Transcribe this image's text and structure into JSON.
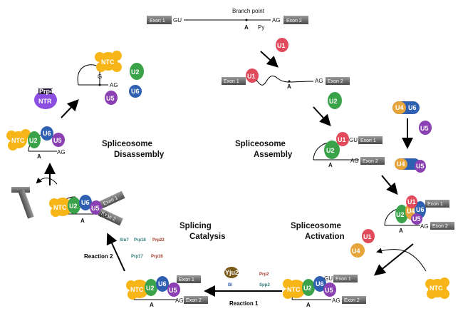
{
  "colors": {
    "u1": "#e04a5a",
    "u2": "#3aa34a",
    "u4": "#e6a43a",
    "u5": "#8a3fb2",
    "u6": "#2f5fb0",
    "ntc": "#f7b518",
    "ntr": "#8a4fe0",
    "yju2": "#7a5a1a",
    "exon": "#6a6a6a",
    "arrow": "#000000"
  },
  "labels": {
    "branch_point": "Branch point",
    "gu": "GU",
    "ag": "AG",
    "a": "A",
    "py": "Py",
    "exon1": "Exon 1",
    "exon2": "Exon 2",
    "u1": "U1",
    "u2": "U2",
    "u4": "U4",
    "u5": "U5",
    "u6": "U6",
    "ntc": "NTC",
    "ntr": "NTR",
    "prp43": "Prp43",
    "yju2": "Yju2",
    "g": "G"
  },
  "stages": {
    "assembly_line1": "Spliceosome",
    "assembly_line2": "Assembly",
    "activation_line1": "Spliceosome",
    "activation_line2": "Activation",
    "catalysis_line1": "Splicing",
    "catalysis_line2": "Catalysis",
    "disassembly_line1": "Spliceosome",
    "disassembly_line2": "Disassembly"
  },
  "reactions": {
    "reaction1": "Reaction 1",
    "reaction2": "Reaction 2"
  },
  "factors": {
    "r1_left": "Yju2",
    "r1_left2": "Bl",
    "r1_right1": "Prp2",
    "r1_right2": "Spp2",
    "r2_row1": [
      "Slu7",
      "Prp18",
      "Prp22"
    ],
    "r2_row2": [
      "Prp17",
      "Prp16"
    ]
  }
}
